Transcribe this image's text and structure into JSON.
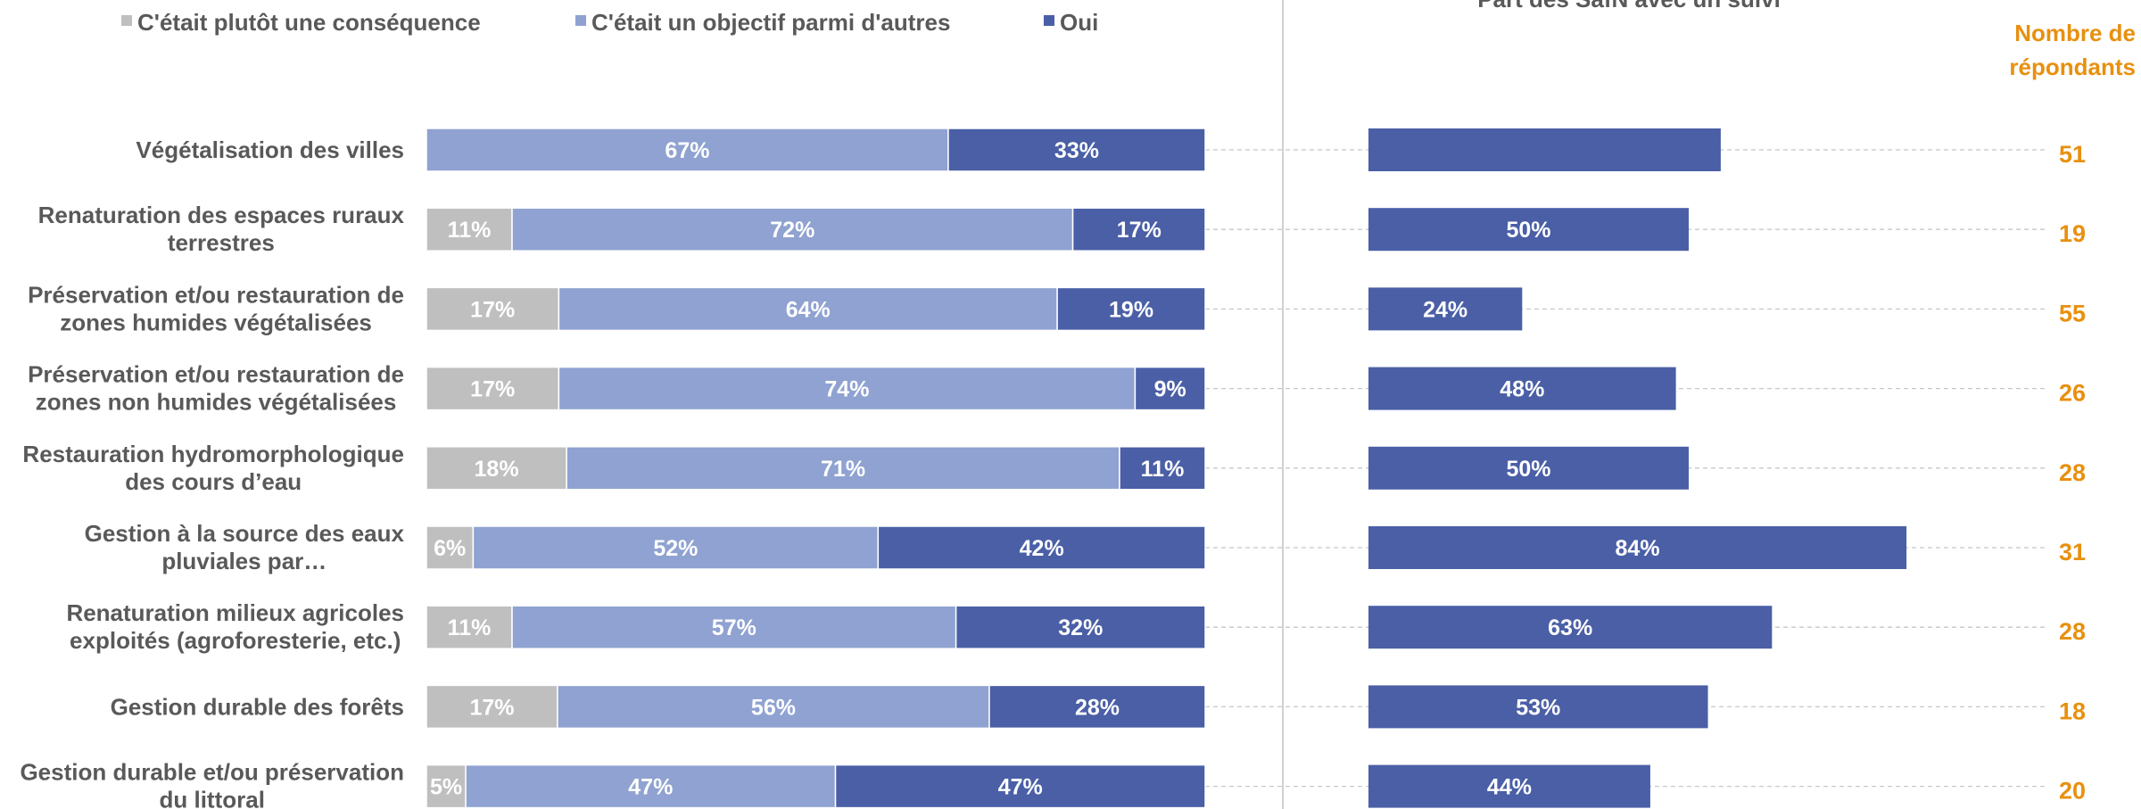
{
  "colors": {
    "consequence": "#bfbfbf",
    "objectif": "#8fa2d1",
    "oui": "#4a5fa6",
    "respondents": "#e8900f",
    "label_text": "#595959",
    "bar_text": "#ffffff",
    "divider": "#d0d0d0",
    "guide": "#c8c8c8"
  },
  "chart_data": [
    {
      "type": "bar",
      "orientation": "horizontal",
      "stacked": true,
      "normalized_percent": true,
      "categories": [
        "Végétalisation des villes",
        "Renaturation des espaces ruraux terrestres",
        "Préservation et/ou restauration de zones humides végétalisées",
        "Préservation et/ou restauration de zones non humides végétalisées",
        "Restauration hydromorphologique des cours d’eau",
        "Gestion à la source des eaux pluviales par…",
        "Renaturation milieux agricoles exploités (agroforesterie, etc.)",
        "Gestion durable des forêts",
        "Gestion durable et/ou préservation du littoral"
      ],
      "category_lines": [
        [
          "Végétalisation des villes"
        ],
        [
          "Renaturation des espaces ruraux",
          "terrestres"
        ],
        [
          "Préservation et/ou restauration de",
          "zones humides végétalisées"
        ],
        [
          "Préservation et/ou restauration de",
          "zones non humides végétalisées"
        ],
        [
          "Restauration hydromorphologique",
          "des cours d’eau"
        ],
        [
          "Gestion à la source des eaux",
          "pluviales par…"
        ],
        [
          "Renaturation milieux agricoles",
          "exploités (agroforesterie, etc.)"
        ],
        [
          "Gestion durable des forêts"
        ],
        [
          "Gestion durable et/ou préservation",
          "du littoral"
        ]
      ],
      "series": [
        {
          "name": "C'était plutôt une conséquence",
          "color_key": "consequence",
          "values": [
            0,
            11,
            17,
            17,
            18,
            6,
            11,
            17,
            5
          ],
          "labels": [
            "",
            "11%",
            "17%",
            "17%",
            "18%",
            "6%",
            "11%",
            "17%",
            "5%"
          ]
        },
        {
          "name": "C'était un objectif parmi d'autres",
          "color_key": "objectif",
          "values": [
            67,
            72,
            64,
            74,
            71,
            52,
            57,
            56,
            47
          ],
          "labels": [
            "67%",
            "72%",
            "64%",
            "74%",
            "71%",
            "52%",
            "57%",
            "56%",
            "47%"
          ]
        },
        {
          "name": "Oui",
          "color_key": "oui",
          "values": [
            33,
            17,
            19,
            9,
            11,
            42,
            32,
            28,
            47
          ],
          "labels": [
            "33%",
            "17%",
            "19%",
            "9%",
            "11%",
            "42%",
            "32%",
            "28%",
            "47%"
          ]
        }
      ],
      "legend_position": "top"
    },
    {
      "type": "bar",
      "orientation": "horizontal",
      "title": "Part des SafN avec un suivi",
      "values": [
        55,
        50,
        24,
        48,
        50,
        84,
        63,
        53,
        44
      ],
      "labels": [
        "",
        "50%",
        "24%",
        "48%",
        "50%",
        "84%",
        "63%",
        "53%",
        "44%"
      ],
      "xlim": [
        0,
        100
      ]
    }
  ],
  "respondents": {
    "header_line1": "Nombre de",
    "header_line2": "répondants",
    "values": [
      "51",
      "19",
      "55",
      "26",
      "28",
      "31",
      "28",
      "18",
      "20"
    ]
  }
}
